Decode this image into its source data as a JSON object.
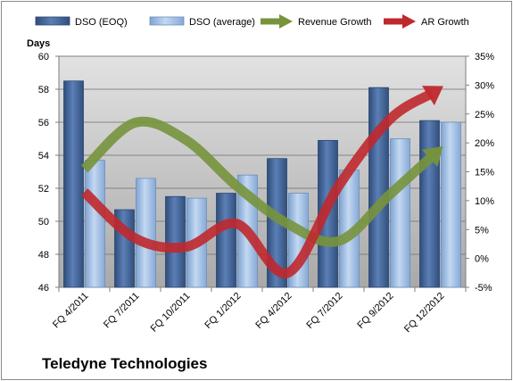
{
  "chart_data": {
    "type": "bar",
    "categories": [
      "FQ 4/2011",
      "FQ 7/2011",
      "FQ 10/2011",
      "FQ 1/2012",
      "FQ 4/2012",
      "FQ 7/2012",
      "FQ 9/2012",
      "FQ 12/2012"
    ],
    "series": [
      {
        "name": "DSO (EOQ)",
        "type": "bar",
        "axis": "left",
        "values": [
          58.5,
          50.7,
          51.5,
          51.7,
          53.8,
          54.9,
          58.1,
          56.1
        ],
        "color": "#3f5f8f"
      },
      {
        "name": "DSO (average)",
        "type": "bar",
        "axis": "left",
        "values": [
          53.7,
          52.6,
          51.4,
          52.8,
          51.7,
          53.1,
          55.0,
          56.0
        ],
        "color": "#9dbde4"
      },
      {
        "name": "Revenue Growth",
        "type": "line",
        "axis": "right",
        "values": [
          0.155,
          0.235,
          0.205,
          0.125,
          0.06,
          0.03,
          0.11,
          0.19
        ],
        "color": "#77933c"
      },
      {
        "name": "AR Growth",
        "type": "line",
        "axis": "right",
        "values": [
          0.115,
          0.035,
          0.02,
          0.06,
          -0.025,
          0.125,
          0.24,
          0.295
        ],
        "color": "#c0282d"
      }
    ],
    "ylabel": "Days",
    "ylim": [
      46,
      60
    ],
    "yticks": [
      "46",
      "48",
      "50",
      "52",
      "54",
      "56",
      "58",
      "60"
    ],
    "y2lim": [
      -0.05,
      0.35
    ],
    "y2ticks": [
      "-5%",
      "0%",
      "5%",
      "10%",
      "15%",
      "20%",
      "25%",
      "30%",
      "35%"
    ],
    "grid": true,
    "legend": "top",
    "title": "Teledyne Technologies"
  }
}
